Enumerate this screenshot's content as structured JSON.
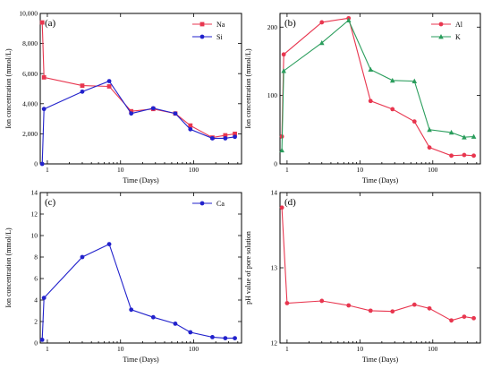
{
  "chart_data": [
    {
      "id": "a",
      "type": "line",
      "panel_label": "(a)",
      "xlabel": "Time (Days)",
      "ylabel": "Ion concentration (mmol/L)",
      "xscale": "log",
      "xlim": [
        0.8,
        450
      ],
      "ylim": [
        0,
        10000
      ],
      "xticks": [
        1,
        10,
        100
      ],
      "xtick_labels": [
        "1",
        "10",
        "100"
      ],
      "yticks": [
        0,
        2000,
        4000,
        6000,
        8000,
        10000
      ],
      "ytick_labels": [
        "0",
        "2,000",
        "4,000",
        "6,000",
        "8,000",
        "10,000"
      ],
      "legend_position": "top-right",
      "series": [
        {
          "name": "Na",
          "color": "#e8364f",
          "marker": "square",
          "x": [
            0.85,
            0.9,
            3,
            7,
            14,
            28,
            56,
            90,
            180,
            270,
            365
          ],
          "y": [
            9400,
            5750,
            5200,
            5150,
            3500,
            3650,
            3350,
            2550,
            1750,
            1900,
            2000
          ]
        },
        {
          "name": "Si",
          "color": "#2222cc",
          "marker": "circle",
          "x": [
            0.85,
            0.9,
            3,
            7,
            14,
            28,
            56,
            90,
            180,
            270,
            365
          ],
          "y": [
            0,
            3650,
            4800,
            5500,
            3350,
            3700,
            3350,
            2300,
            1700,
            1700,
            1800
          ]
        }
      ]
    },
    {
      "id": "b",
      "type": "line",
      "panel_label": "(b)",
      "xlabel": "Time (Days)",
      "ylabel": "Ion concentration (mmol/L)",
      "xscale": "log",
      "xlim": [
        0.8,
        450
      ],
      "ylim": [
        0,
        220
      ],
      "xticks": [
        1,
        10,
        100
      ],
      "xtick_labels": [
        "1",
        "10",
        "100"
      ],
      "yticks": [
        0,
        100,
        200
      ],
      "ytick_labels": [
        "0",
        "100",
        "200"
      ],
      "legend_position": "top-right",
      "series": [
        {
          "name": "Al",
          "color": "#e8364f",
          "marker": "circle",
          "x": [
            0.85,
            0.9,
            3,
            7,
            14,
            28,
            56,
            90,
            180,
            270,
            365
          ],
          "y": [
            40,
            160,
            207,
            213,
            92,
            80,
            62,
            24,
            12,
            13,
            12
          ]
        },
        {
          "name": "K",
          "color": "#2a9d5c",
          "marker": "triangle",
          "x": [
            0.85,
            0.9,
            3,
            7,
            14,
            28,
            56,
            90,
            180,
            270,
            365
          ],
          "y": [
            20,
            136,
            177,
            210,
            138,
            122,
            121,
            50,
            46,
            39,
            40
          ]
        }
      ]
    },
    {
      "id": "c",
      "type": "line",
      "panel_label": "(c)",
      "xlabel": "Time (Days)",
      "ylabel": "Ion concentration (mmol/L)",
      "xscale": "log",
      "xlim": [
        0.8,
        450
      ],
      "ylim": [
        0,
        14
      ],
      "xticks": [
        1,
        10,
        100
      ],
      "xtick_labels": [
        "1",
        "10",
        "100"
      ],
      "yticks": [
        0,
        2,
        4,
        6,
        8,
        10,
        12,
        14
      ],
      "ytick_labels": [
        "0",
        "2",
        "4",
        "6",
        "8",
        "10",
        "12",
        "14"
      ],
      "legend_position": "top-right",
      "series": [
        {
          "name": "Ca",
          "color": "#2222cc",
          "marker": "circle",
          "x": [
            0.85,
            0.9,
            3,
            7,
            14,
            28,
            56,
            90,
            180,
            270,
            365
          ],
          "y": [
            0.3,
            4.2,
            8.0,
            9.2,
            3.1,
            2.4,
            1.8,
            1.0,
            0.55,
            0.45,
            0.45
          ]
        }
      ]
    },
    {
      "id": "d",
      "type": "line",
      "panel_label": "(d)",
      "xlabel": "Time (Days)",
      "ylabel": "pH value of pore solution",
      "xscale": "log",
      "xlim": [
        0.8,
        450
      ],
      "ylim": [
        12,
        14
      ],
      "xticks": [
        1,
        10,
        100
      ],
      "xtick_labels": [
        "1",
        "10",
        "100"
      ],
      "yticks": [
        12,
        13,
        14
      ],
      "ytick_labels": [
        "12",
        "13",
        "14"
      ],
      "legend_position": "none",
      "series": [
        {
          "name": "",
          "color": "#e8364f",
          "marker": "circle",
          "x": [
            0.85,
            1,
            3,
            7,
            14,
            28,
            56,
            90,
            180,
            270,
            365
          ],
          "y": [
            13.8,
            12.53,
            12.56,
            12.5,
            12.43,
            12.42,
            12.51,
            12.46,
            12.3,
            12.35,
            12.33
          ]
        }
      ]
    }
  ]
}
